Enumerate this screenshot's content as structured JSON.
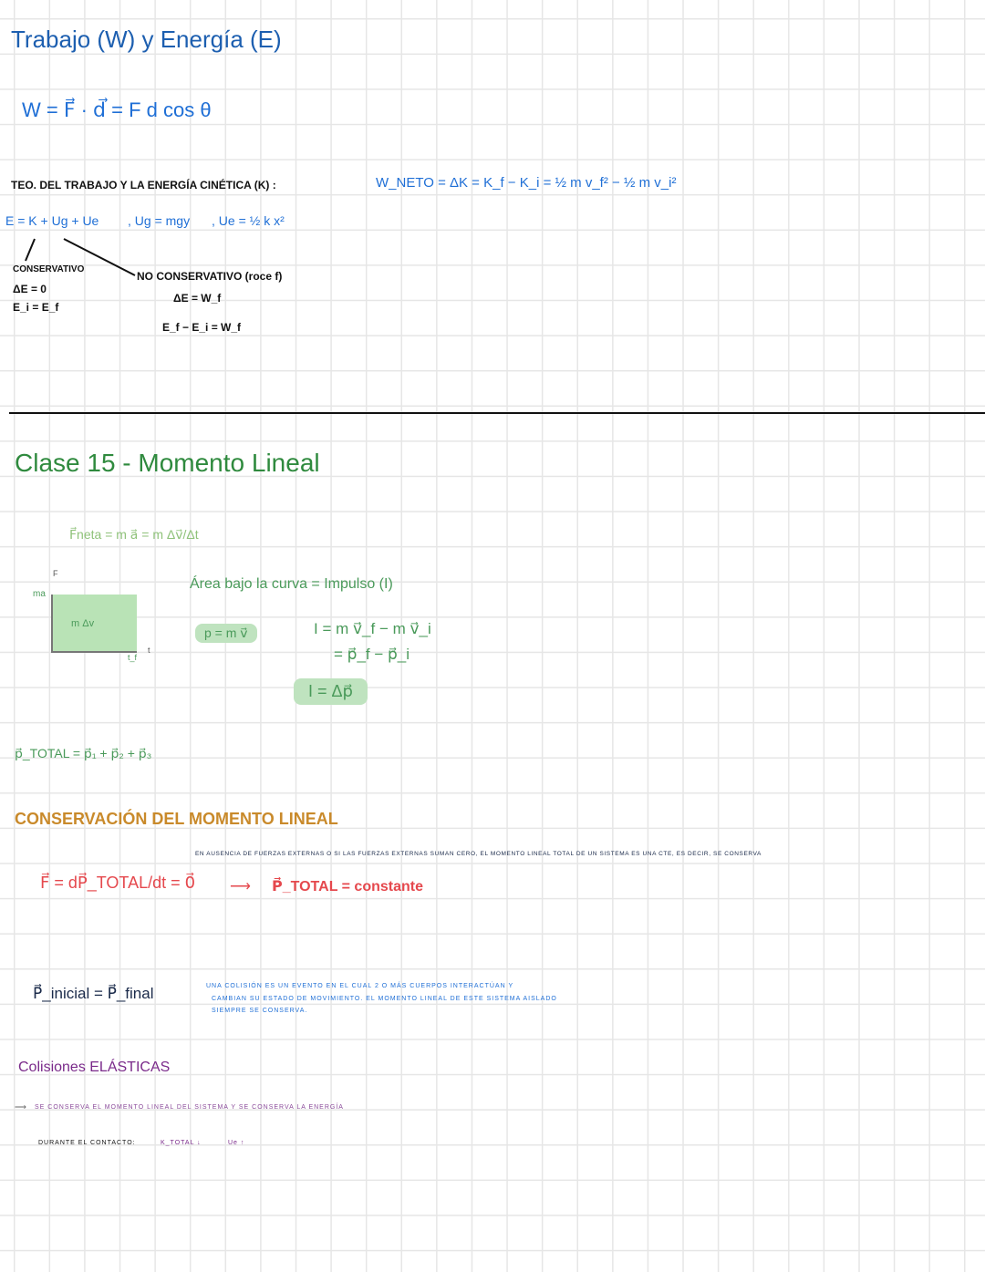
{
  "section1": {
    "title": "Trabajo (W) y Energía (E)",
    "work_formula": "W = F⃗ · d⃗ = F d cos θ",
    "theorem_label": "TEO. DEL TRABAJO Y LA ENERGÍA CINÉTICA (K) :",
    "theorem_formula": "W_NETO = ΔK = K_f − K_i = ½ m v_f² − ½ m v_i²",
    "energy_formula": "E = K + Ug + Ue",
    "ug_formula": ", Ug = mgy",
    "ue_formula": ", Ue = ½ k x²",
    "conservative": {
      "label": "CONSERVATIVO",
      "line1": "ΔE = 0",
      "line2": "E_i = E_f"
    },
    "non_conservative": {
      "label": "NO CONSERVATIVO (roce f)",
      "line1": "ΔE = W_f",
      "line2": "E_f − E_i = W_f"
    }
  },
  "section2": {
    "title": "Clase 15 - Momento Lineal",
    "newton": "F⃗neta = m a⃗ = m Δv⃗/Δt",
    "graph": {
      "y_axis": "F",
      "x_axis": "t",
      "y_mark": "ma",
      "x_mark": "t_f",
      "area_label": "m  Δv"
    },
    "area_text": "Área bajo la curva = Impulso (I)",
    "momentum_def": "p = m v⃗",
    "impulse_line1": "I = m v⃗_f − m v⃗_i",
    "impulse_line2": "= p⃗_f − p⃗_i",
    "impulse_box": "I = Δp⃗",
    "p_total": "p⃗_TOTAL = p⃗₁ + p⃗₂ + p⃗₃"
  },
  "section3": {
    "title": "CONSERVACIÓN DEL MOMENTO LINEAL",
    "note": "EN AUSENCIA DE FUERZAS EXTERNAS O SI LAS FUERZAS EXTERNAS SUMAN CERO, EL MOMENTO LINEAL TOTAL DE UN SISTEMA ES UNA CTE, ES DECIR, SE CONSERVA",
    "formula": "F⃗ = dP⃗_TOTAL/dt = 0⃗",
    "result": "P⃗_TOTAL = constante",
    "equality": "P⃗_inicial = P⃗_final",
    "collision_note_1": "UNA COLISIÓN ES UN EVENTO EN EL CUAL 2 O MÁS CUERPOS INTERACTÚAN Y",
    "collision_note_2": "CAMBIAN SU ESTADO DE MOVIMIENTO. EL MOMENTO LINEAL DE ESTE SISTEMA AISLADO",
    "collision_note_3": "SIEMPRE SE CONSERVA."
  },
  "section4": {
    "title": "Colisiones ELÁSTICAS",
    "note": "SE CONSERVA EL MOMENTO LINEAL DEL SISTEMA Y SE CONSERVA LA ENERGÍA",
    "contact_label": "DURANTE EL CONTACTO:",
    "k_total": "K_TOTAL ↓",
    "ue": "Ue ↑"
  }
}
